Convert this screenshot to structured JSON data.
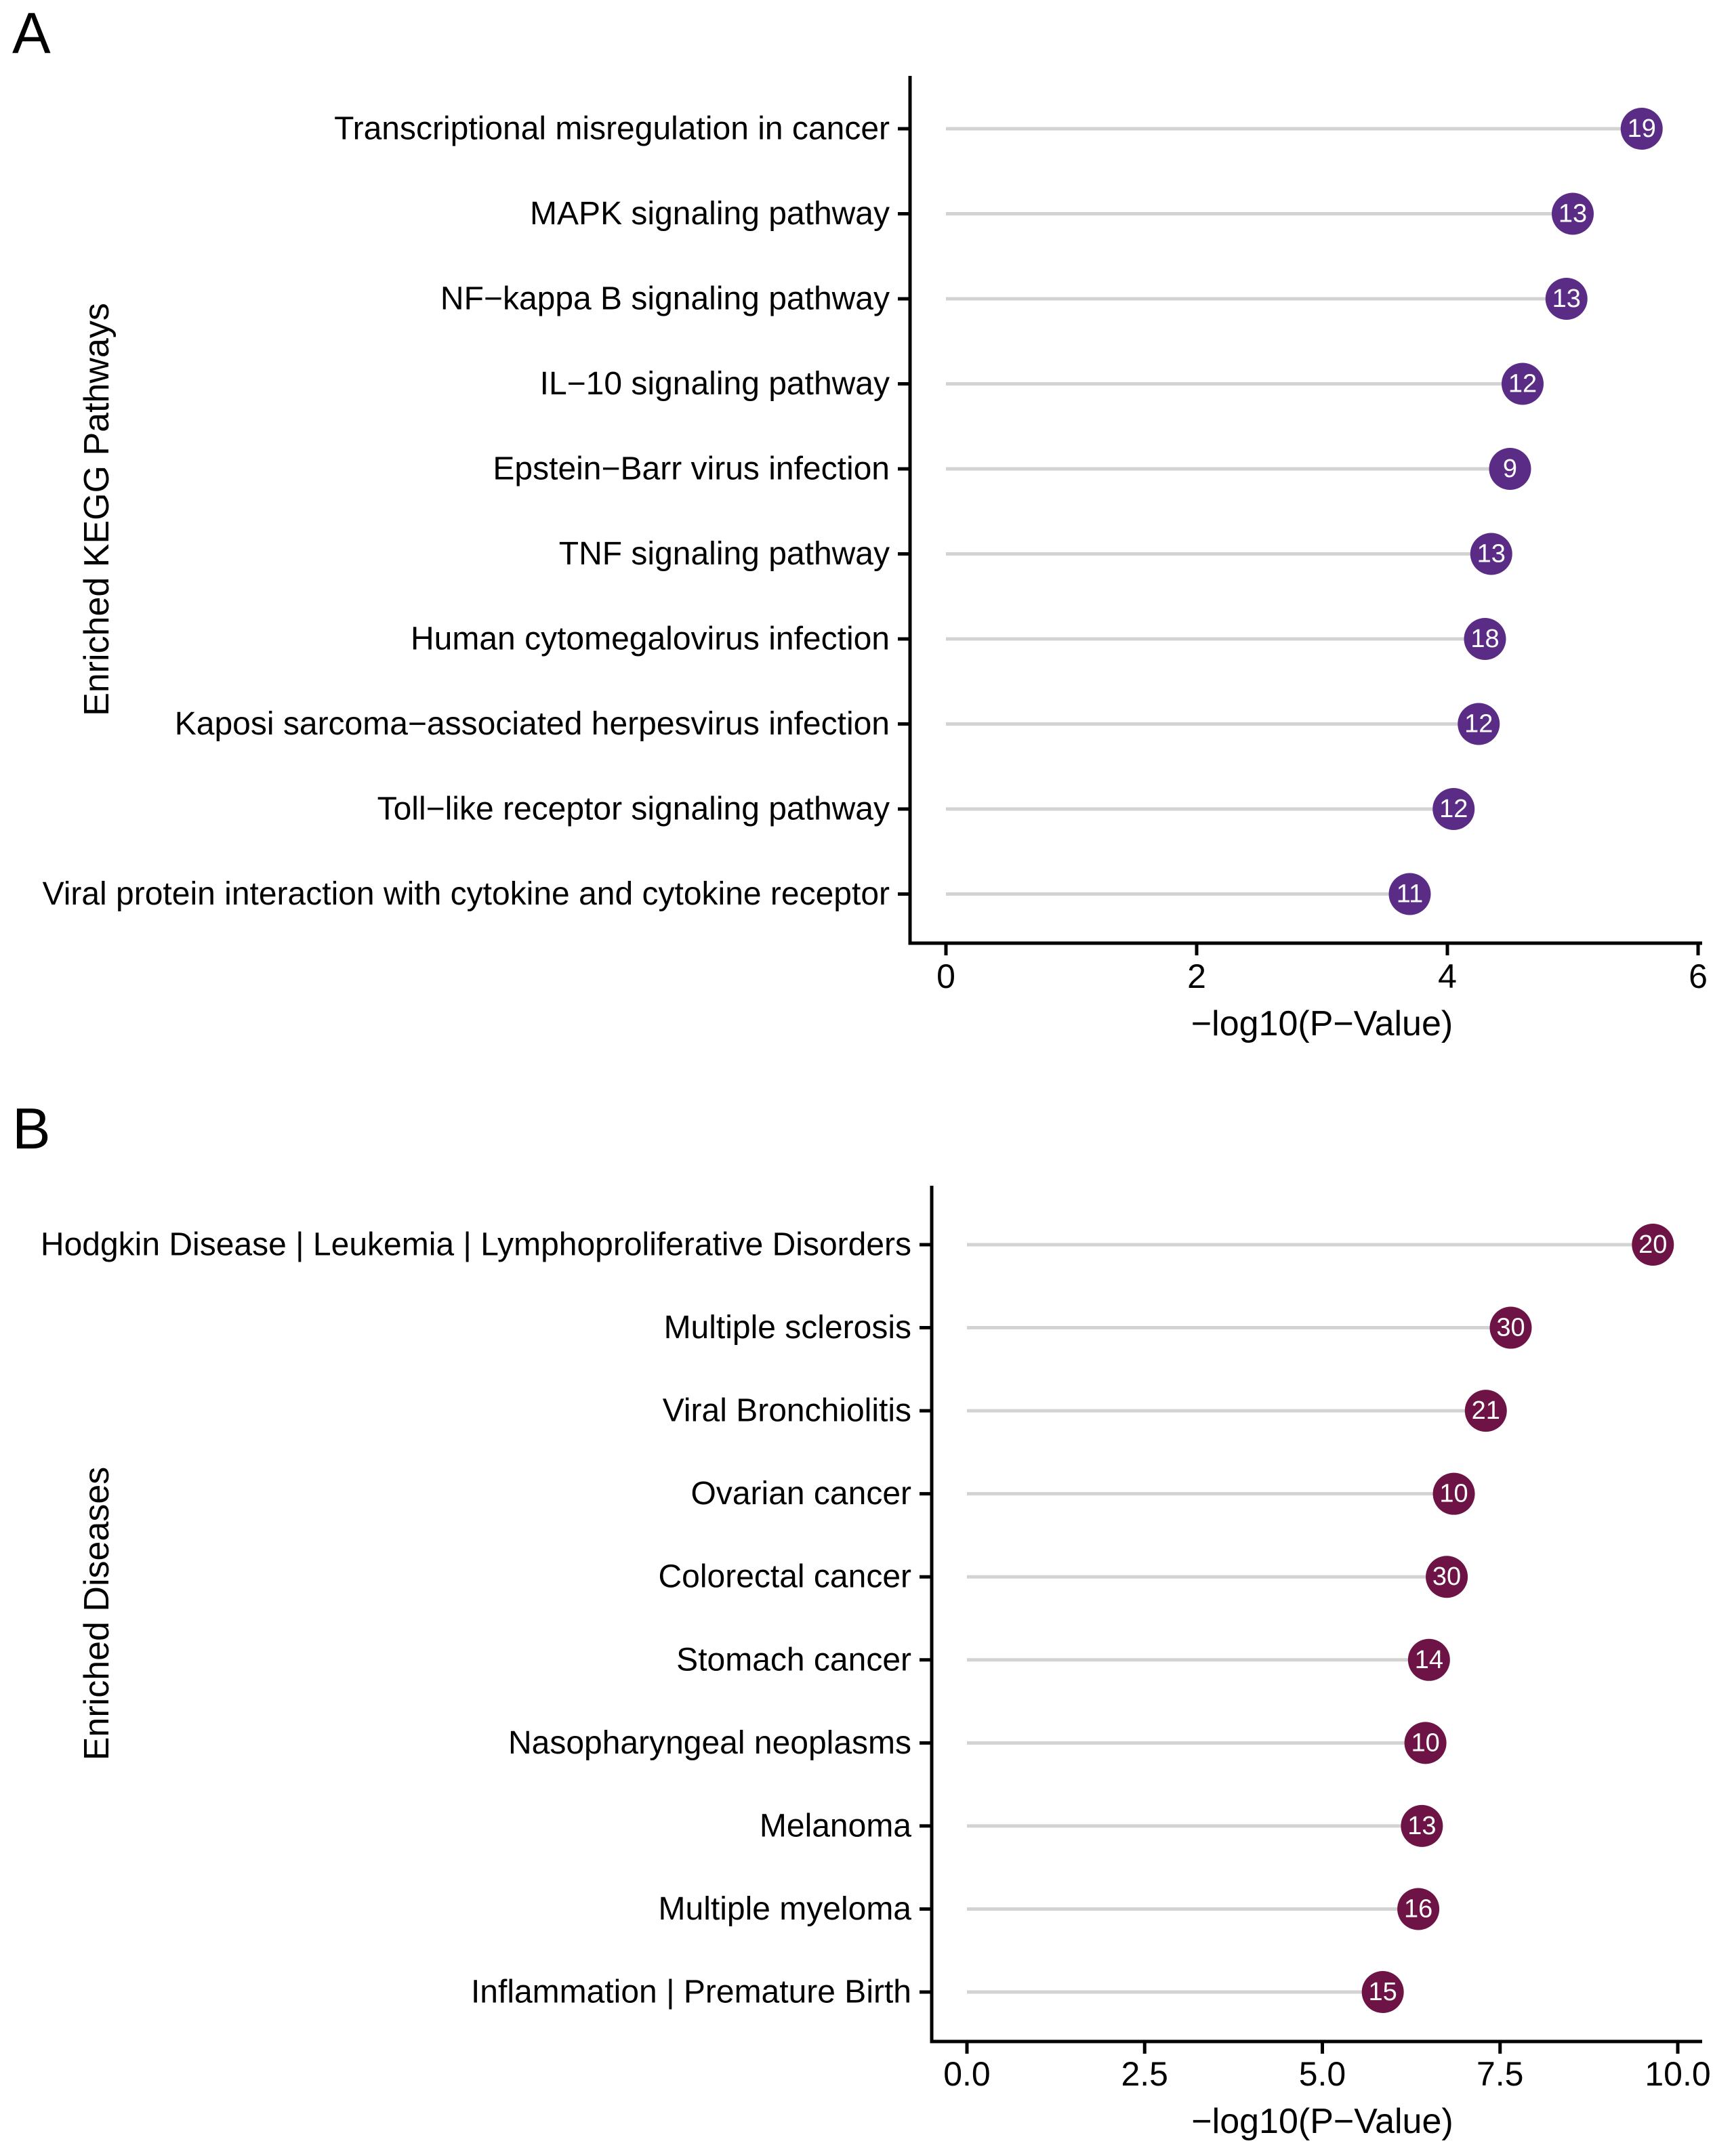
{
  "figure_title": "",
  "chart_data": [
    {
      "type": "lollipop",
      "panel_letter": "A",
      "xlabel": "−log10(P−Value)",
      "ylabel": "Enriched KEGG Pathways",
      "xlim": [
        0,
        6
      ],
      "x_ticks": [
        0,
        2,
        4,
        6
      ],
      "x_tick_labels": [
        "0",
        "2",
        "4",
        "6"
      ],
      "grid": false,
      "legend": "none",
      "dot_color": "#5B2C86",
      "stem_color": "#D3D3D3",
      "categories": [
        "Transcriptional misregulation in cancer",
        "MAPK signaling pathway",
        "NF−kappa B signaling pathway",
        "IL−10 signaling pathway",
        "Epstein−Barr virus infection",
        "TNF signaling pathway",
        "Human cytomegalovirus infection",
        "Kaposi sarcoma−associated herpesvirus infection",
        "Toll−like receptor signaling pathway",
        "Viral protein interaction with cytokine and cytokine receptor"
      ],
      "values": [
        5.55,
        5.0,
        4.95,
        4.6,
        4.5,
        4.35,
        4.3,
        4.25,
        4.05,
        3.7
      ],
      "counts": [
        19,
        13,
        13,
        12,
        9,
        13,
        18,
        12,
        12,
        11
      ]
    },
    {
      "type": "lollipop",
      "panel_letter": "B",
      "xlabel": "−log10(P−Value)",
      "ylabel": "Enriched Diseases",
      "xlim": [
        0,
        10
      ],
      "x_ticks": [
        0,
        2.5,
        5,
        7.5,
        10
      ],
      "x_tick_labels": [
        "0.0",
        "2.5",
        "5.0",
        "7.5",
        "10.0"
      ],
      "grid": false,
      "legend": "none",
      "dot_color": "#6E1345",
      "stem_color": "#D3D3D3",
      "categories": [
        "Hodgkin Disease | Leukemia | Lymphoproliferative Disorders",
        "Multiple sclerosis",
        "Viral Bronchiolitis",
        "Ovarian cancer",
        "Colorectal cancer",
        "Stomach cancer",
        "Nasopharyngeal neoplasms",
        "Melanoma",
        "Multiple myeloma",
        "Inflammation | Premature Birth"
      ],
      "values": [
        9.65,
        7.65,
        7.3,
        6.85,
        6.75,
        6.5,
        6.45,
        6.4,
        6.35,
        5.85
      ],
      "counts": [
        20,
        30,
        21,
        10,
        30,
        14,
        10,
        13,
        16,
        15
      ]
    }
  ]
}
